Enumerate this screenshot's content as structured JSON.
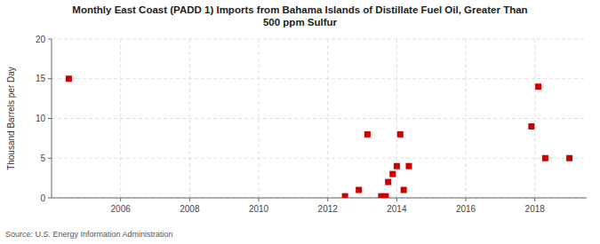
{
  "chart_data": {
    "type": "scatter",
    "title": "Monthly East Coast (PADD 1) Imports from Bahama Islands of Distillate Fuel Oil, Greater Than\n500 ppm Sulfur",
    "ylabel": "Thousand Barrels per Day",
    "source": "Source: U.S. Energy Information Administration",
    "x": [
      2004.5,
      2012.5,
      2012.9,
      2013.15,
      2013.55,
      2013.68,
      2013.75,
      2013.88,
      2014.0,
      2014.1,
      2014.2,
      2014.35,
      2017.9,
      2018.1,
      2018.3,
      2019.0
    ],
    "values": [
      15,
      0.2,
      1,
      8,
      0.2,
      0.2,
      2,
      3,
      4,
      8,
      1,
      4,
      9,
      14,
      5,
      5
    ],
    "color": "#cc0000",
    "marker": "square",
    "xlim": [
      2004.0,
      2019.5
    ],
    "ylim": [
      0,
      20
    ],
    "xticks": [
      2006,
      2008,
      2010,
      2012,
      2014,
      2016,
      2018
    ],
    "yticks": [
      0,
      5,
      10,
      15,
      20
    ],
    "grid": true
  }
}
